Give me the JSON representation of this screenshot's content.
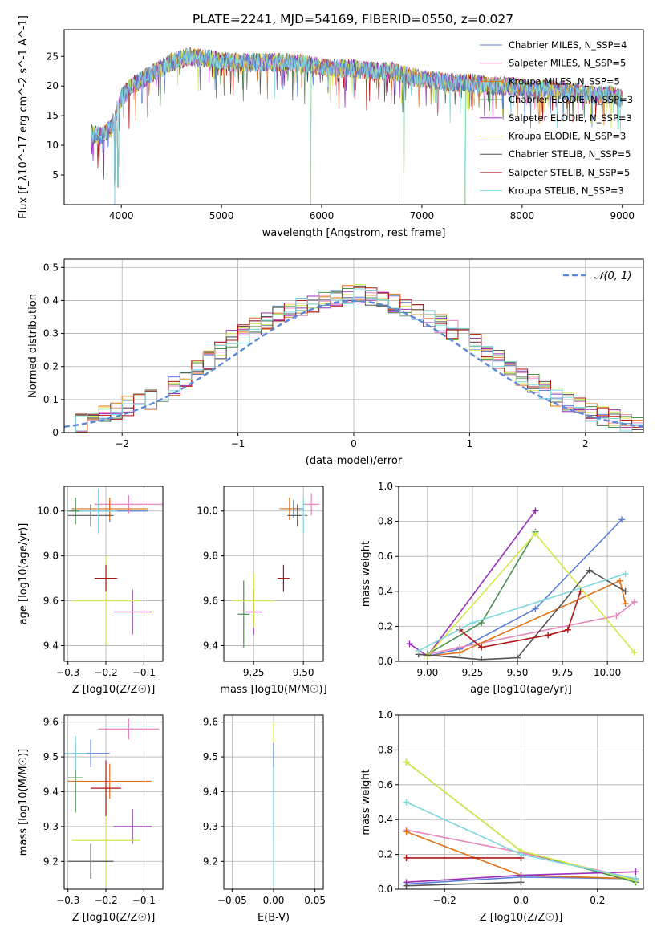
{
  "figure": {
    "title": "PLATE=2241, MJD=54169, FIBERID=0550, z=0.027",
    "series": [
      {
        "name": "Chabrier MILES, N_SSP=4",
        "color": "#5b7fd6"
      },
      {
        "name": "Salpeter MILES, N_SSP=5",
        "color": "#e586bd"
      },
      {
        "name": "Kroupa MILES, N_SSP=5",
        "color": "#e07318"
      },
      {
        "name": "Chabrier ELODIE, N_SSP=3",
        "color": "#4e8f52"
      },
      {
        "name": "Salpeter ELODIE, N_SSP=3",
        "color": "#9a2fb8"
      },
      {
        "name": "Kroupa ELODIE, N_SSP=3",
        "color": "#d6e84a"
      },
      {
        "name": "Chabrier STELIB, N_SSP=5",
        "color": "#555555"
      },
      {
        "name": "Salpeter STELIB, N_SSP=5",
        "color": "#b01515"
      },
      {
        "name": "Kroupa STELIB, N_SSP=3",
        "color": "#7fd8e0"
      }
    ]
  },
  "chart_data": [
    {
      "type": "line",
      "id": "spectrum",
      "xlabel": "wavelength [Angstrom, rest frame]",
      "ylabel": "Flux [f_λ10^-17 erg cm^-2 s^-1 A^-1]",
      "xlim": [
        3430,
        9210
      ],
      "ylim": [
        0,
        29.5
      ],
      "xticks": [
        4000,
        5000,
        6000,
        7000,
        8000,
        9000
      ],
      "yticks": [
        5,
        10,
        15,
        20,
        25
      ],
      "grid": false,
      "legend": "top-right",
      "continuum": {
        "x": [
          3700,
          3800,
          3900,
          4000,
          4100,
          4300,
          4500,
          4700,
          4900,
          5100,
          5300,
          5500,
          5700,
          5900,
          6100,
          6300,
          6500,
          6700,
          6900,
          7100,
          7300,
          7500,
          7700,
          7900,
          8100,
          8300,
          8500,
          8700,
          8900,
          9000
        ],
        "y": [
          12,
          11.5,
          13,
          18,
          20,
          22,
          24,
          25,
          24.5,
          24,
          24,
          24,
          24,
          23.5,
          23,
          23,
          22.5,
          22.5,
          21.5,
          21,
          20.5,
          20.5,
          20,
          20,
          19.5,
          19.5,
          19,
          18.5,
          18.5,
          18
        ]
      },
      "dips": [
        {
          "x": 3934,
          "y": 0
        },
        {
          "x": 3968,
          "y": 3
        },
        {
          "x": 5890,
          "y": 0
        },
        {
          "x": 6820,
          "y": 0
        },
        {
          "x": 7430,
          "y": 0
        }
      ]
    },
    {
      "type": "line",
      "id": "residuals",
      "xlabel": "(data-model)/error",
      "ylabel": "Normed distribution",
      "xlim": [
        -2.5,
        2.5
      ],
      "ylim": [
        0,
        0.525
      ],
      "xticks": [
        -2,
        -1,
        0,
        1,
        2
      ],
      "yticks": [
        0.0,
        0.1,
        0.2,
        0.3,
        0.4,
        0.5
      ],
      "grid": true,
      "legend": "top-right",
      "reference": {
        "name": "𝒩(0, 1)",
        "color": "#5b8ad6"
      },
      "bin_width": 0.1,
      "series": [
        {
          "values": [
            0.02,
            0.03,
            0.04,
            0.06,
            0.06,
            0.08,
            0.09,
            0.1,
            0.12,
            0.14,
            0.16,
            0.2,
            0.22,
            0.25,
            0.28,
            0.3,
            0.32,
            0.34,
            0.36,
            0.37,
            0.38,
            0.39,
            0.4,
            0.41,
            0.42,
            0.42,
            0.41,
            0.4,
            0.39,
            0.38,
            0.36,
            0.35,
            0.33,
            0.31,
            0.29,
            0.27,
            0.24,
            0.22,
            0.19,
            0.17,
            0.15,
            0.13,
            0.11,
            0.09,
            0.08,
            0.06,
            0.05,
            0.04,
            0.03,
            0.02
          ]
        }
      ]
    },
    {
      "type": "scatter",
      "id": "age-vs-Z",
      "xlabel": "Z [log10(Z/Z☉)]",
      "ylabel": "age [log10(age/yr)]",
      "xlim": [
        -0.31,
        -0.05
      ],
      "ylim": [
        9.33,
        10.11
      ],
      "xticks": [
        -0.3,
        -0.2,
        -0.1
      ],
      "yticks": [
        9.4,
        9.6,
        9.8,
        10.0
      ],
      "grid": true,
      "points": [
        {
          "x": -0.19,
          "y": 10.0,
          "xerr": 0.1,
          "yerr": 0.05
        },
        {
          "x": -0.14,
          "y": 10.03,
          "xerr": 0.09,
          "yerr": 0.04
        },
        {
          "x": -0.19,
          "y": 10.01,
          "xerr": 0.1,
          "yerr": 0.05
        },
        {
          "x": -0.28,
          "y": 10.0,
          "xerr": 0.02,
          "yerr": 0.06
        },
        {
          "x": -0.13,
          "y": 9.55,
          "xerr": 0.05,
          "yerr": 0.1
        },
        {
          "x": -0.2,
          "y": 9.6,
          "xerr": 0.09,
          "yerr": 0.2
        },
        {
          "x": -0.24,
          "y": 9.98,
          "xerr": 0.06,
          "yerr": 0.05
        },
        {
          "x": -0.2,
          "y": 9.7,
          "xerr": 0.03,
          "yerr": 0.06
        },
        {
          "x": -0.22,
          "y": 10.0,
          "xerr": 0.05,
          "yerr": 0.1
        }
      ]
    },
    {
      "type": "scatter",
      "id": "age-vs-mass",
      "xlabel": "mass [log10(M/M☉)]",
      "ylabel": "",
      "xlim": [
        9.1,
        9.6
      ],
      "ylim": [
        9.33,
        10.11
      ],
      "xticks": [
        9.25,
        9.5
      ],
      "yticks": [
        9.4,
        9.6,
        9.8,
        10.0
      ],
      "grid": true,
      "points": [
        {
          "x": 9.45,
          "y": 10.01,
          "xerr": 0.05,
          "yerr": 0.04
        },
        {
          "x": 9.54,
          "y": 10.03,
          "xerr": 0.04,
          "yerr": 0.05
        },
        {
          "x": 9.43,
          "y": 10.01,
          "xerr": 0.05,
          "yerr": 0.05
        },
        {
          "x": 9.2,
          "y": 9.54,
          "xerr": 0.03,
          "yerr": 0.15
        },
        {
          "x": 9.25,
          "y": 9.55,
          "xerr": 0.04,
          "yerr": 0.1
        },
        {
          "x": 9.25,
          "y": 9.6,
          "xerr": 0.1,
          "yerr": 0.12
        },
        {
          "x": 9.47,
          "y": 9.98,
          "xerr": 0.05,
          "yerr": 0.05
        },
        {
          "x": 9.4,
          "y": 9.7,
          "xerr": 0.03,
          "yerr": 0.06
        },
        {
          "x": 9.5,
          "y": 9.98,
          "xerr": 0.01,
          "yerr": 0.08
        }
      ]
    },
    {
      "type": "line",
      "id": "weight-vs-age",
      "xlabel": "age [log10(age/yr)]",
      "ylabel": "mass weight",
      "xlim": [
        8.84,
        10.2
      ],
      "ylim": [
        0,
        1
      ],
      "xticks": [
        9.0,
        9.25,
        9.5,
        9.75,
        10.0
      ],
      "yticks": [
        0.0,
        0.2,
        0.4,
        0.6,
        0.8,
        1.0
      ],
      "grid": true,
      "series": [
        {
          "x": [
            9.0,
            9.18,
            9.6,
            10.08
          ],
          "y": [
            0.03,
            0.07,
            0.3,
            0.81
          ]
        },
        {
          "x": [
            9.0,
            9.18,
            10.05,
            10.15
          ],
          "y": [
            0.04,
            0.08,
            0.26,
            0.34
          ]
        },
        {
          "x": [
            9.0,
            9.18,
            10.07,
            10.1
          ],
          "y": [
            0.03,
            0.05,
            0.46,
            0.33
          ]
        },
        {
          "x": [
            9.0,
            9.3,
            9.6
          ],
          "y": [
            0.04,
            0.22,
            0.74
          ]
        },
        {
          "x": [
            8.9,
            9.0,
            9.6
          ],
          "y": [
            0.1,
            0.03,
            0.86
          ]
        },
        {
          "x": [
            9.0,
            9.6,
            10.15
          ],
          "y": [
            0.03,
            0.73,
            0.05
          ]
        },
        {
          "x": [
            8.95,
            9.3,
            9.5,
            9.9,
            10.1
          ],
          "y": [
            0.04,
            0.01,
            0.02,
            0.52,
            0.4
          ]
        },
        {
          "x": [
            9.18,
            9.3,
            9.67,
            9.78,
            9.85
          ],
          "y": [
            0.18,
            0.08,
            0.15,
            0.18,
            0.4
          ]
        },
        {
          "x": [
            8.95,
            9.25,
            10.1
          ],
          "y": [
            0.06,
            0.22,
            0.5
          ]
        }
      ]
    },
    {
      "type": "scatter",
      "id": "mass-vs-Z",
      "xlabel": "Z [log10(Z/Z☉)]",
      "ylabel": "mass [log10(M/M☉)]",
      "xlim": [
        -0.31,
        -0.05
      ],
      "ylim": [
        9.12,
        9.62
      ],
      "xticks": [
        -0.3,
        -0.2,
        -0.1
      ],
      "yticks": [
        9.2,
        9.3,
        9.4,
        9.5,
        9.6
      ],
      "grid": true,
      "points": [
        {
          "x": -0.24,
          "y": 9.51,
          "xerr": 0.05,
          "yerr": 0.04
        },
        {
          "x": -0.14,
          "y": 9.58,
          "xerr": 0.08,
          "yerr": 0.03
        },
        {
          "x": -0.19,
          "y": 9.43,
          "xerr": 0.11,
          "yerr": 0.05
        },
        {
          "x": -0.28,
          "y": 9.44,
          "xerr": 0.02,
          "yerr": 0.1
        },
        {
          "x": -0.13,
          "y": 9.3,
          "xerr": 0.05,
          "yerr": 0.05
        },
        {
          "x": -0.2,
          "y": 9.26,
          "xerr": 0.09,
          "yerr": 0.13
        },
        {
          "x": -0.24,
          "y": 9.2,
          "xerr": 0.06,
          "yerr": 0.05
        },
        {
          "x": -0.2,
          "y": 9.41,
          "xerr": 0.04,
          "yerr": 0.08
        },
        {
          "x": -0.28,
          "y": 9.51,
          "xerr": 0.03,
          "yerr": 0.05
        }
      ]
    },
    {
      "type": "scatter",
      "id": "mass-vs-ebv",
      "xlabel": "E(B-V)",
      "ylabel": "",
      "xlim": [
        -0.06,
        0.06
      ],
      "ylim": [
        9.12,
        9.62
      ],
      "xticks": [
        -0.05,
        0.0,
        0.05
      ],
      "yticks": [
        9.2,
        9.3,
        9.4,
        9.5,
        9.6
      ],
      "grid": true,
      "points": [
        {
          "x": 0.0,
          "y": 9.5,
          "xerr": 0,
          "yerr": 0.1
        },
        {
          "x": 0.0,
          "y": 9.4,
          "xerr": 0,
          "yerr": 0.14
        },
        {
          "x": 0.0,
          "y": 9.3,
          "xerr": 0,
          "yerr": 0.17
        }
      ]
    },
    {
      "type": "line",
      "id": "weight-vs-Z",
      "xlabel": "Z [log10(Z/Z☉)]",
      "ylabel": "mass weight",
      "xlim": [
        -0.32,
        0.32
      ],
      "ylim": [
        0,
        1
      ],
      "xticks": [
        -0.2,
        0.0,
        0.2
      ],
      "yticks": [
        0.0,
        0.2,
        0.4,
        0.6,
        0.8,
        1.0
      ],
      "grid": true,
      "series": [
        {
          "x": [
            -0.3,
            0.0,
            0.3
          ],
          "y": [
            0.03,
            0.07,
            0.06
          ]
        },
        {
          "x": [
            -0.3,
            0.0,
            0.3
          ],
          "y": [
            0.34,
            0.21,
            0.06
          ]
        },
        {
          "x": [
            -0.3,
            0.0,
            0.3
          ],
          "y": [
            0.33,
            0.08,
            0.06
          ]
        },
        {
          "x": [
            -0.3,
            0.0,
            0.3
          ],
          "y": [
            0.73,
            0.22,
            0.04
          ]
        },
        {
          "x": [
            -0.3,
            0.0,
            0.3
          ],
          "y": [
            0.04,
            0.08,
            0.1
          ]
        },
        {
          "x": [
            -0.3,
            0.0,
            0.3
          ],
          "y": [
            0.73,
            0.22,
            0.05
          ]
        },
        {
          "x": [
            -0.3,
            0.0
          ],
          "y": [
            0.02,
            0.04
          ]
        },
        {
          "x": [
            -0.3,
            0.0
          ],
          "y": [
            0.18,
            0.18
          ]
        },
        {
          "x": [
            -0.3,
            0.0,
            0.3
          ],
          "y": [
            0.5,
            0.2,
            0.06
          ]
        }
      ]
    }
  ]
}
